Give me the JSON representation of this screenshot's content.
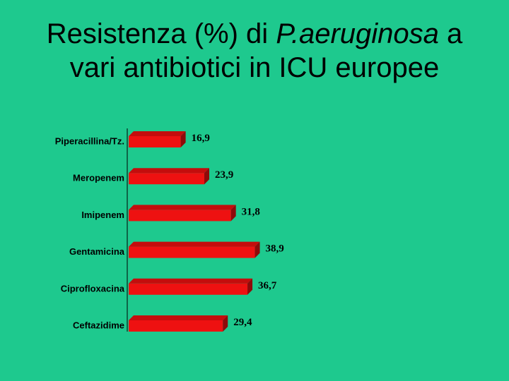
{
  "slide": {
    "title_pre": "Resistenza (%) di ",
    "title_italic": "P.aeruginosa",
    "title_post": " a",
    "title_line2": "vari antibiotici in ICU europee"
  },
  "chart_data": {
    "type": "bar",
    "orientation": "horizontal",
    "categories": [
      "Piperacillina/Tz.",
      "Meropenem",
      "Imipenem",
      "Gentamicina",
      "Ciprofloxacina",
      "Ceftazidime"
    ],
    "values": [
      16.9,
      23.9,
      31.8,
      38.9,
      36.7,
      29.4
    ],
    "value_labels": [
      "16,9",
      "23,9",
      "31,8",
      "38,9",
      "36,7",
      "29,4"
    ],
    "bar_style": "3d",
    "grid": false,
    "axis_visible": false,
    "colors": {
      "bar_face": "#ee1111",
      "bar_top": "#c40d0d",
      "bar_side": "#8e0a0a",
      "background": "#1ec98e"
    }
  }
}
